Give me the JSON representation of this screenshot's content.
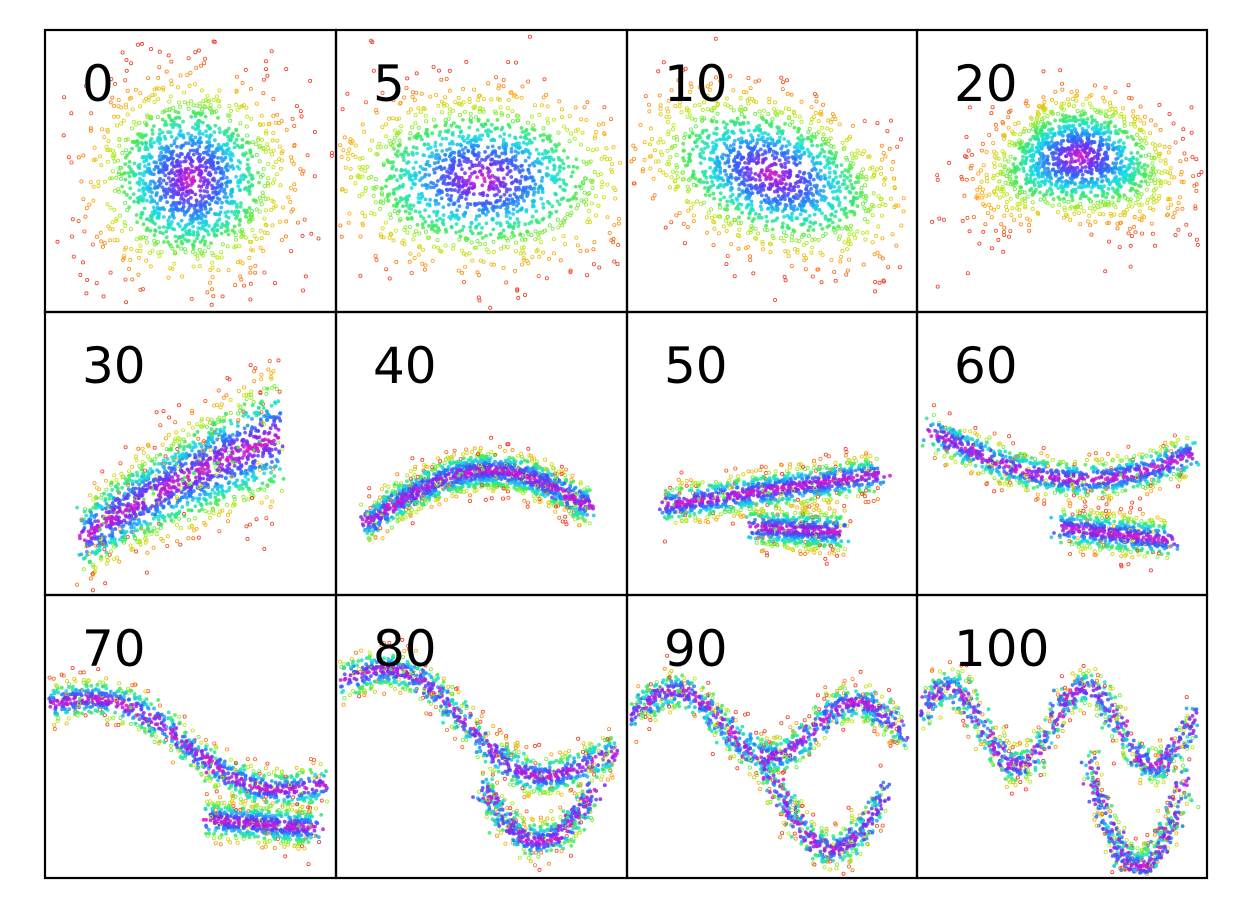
{
  "chart_data": {
    "type": "scatter",
    "layout": {
      "rows": 3,
      "cols": 4
    },
    "axes_visible": false,
    "legend": "none",
    "point_color_scale": "density, red at sparse edges through orange, yellow, green, cyan, blue to magenta at densest core",
    "panels": [
      {
        "label": "0",
        "shape": "isotropic gaussian blob",
        "center": [
          0.0,
          0.0
        ],
        "spread": [
          0.8,
          0.8
        ]
      },
      {
        "label": "5",
        "shape": "horizontally elongated ellipse",
        "center": [
          0.0,
          0.0
        ],
        "spread": [
          1.1,
          0.75
        ]
      },
      {
        "label": "10",
        "shape": "tilted ellipse, slope down-right",
        "center": [
          0.0,
          0.1
        ],
        "spread": [
          1.0,
          0.65
        ]
      },
      {
        "label": "20",
        "shape": "compact bent blob",
        "center": [
          0.2,
          0.3
        ],
        "spread": [
          0.8,
          0.5
        ]
      },
      {
        "label": "30",
        "shape": "comet-like curve rising to the right",
        "center": [
          0.3,
          -0.4
        ],
        "spread": [
          1.6,
          0.5
        ]
      },
      {
        "label": "40",
        "shape": "thin upward arc",
        "center": [
          0.3,
          -0.5
        ],
        "spread": [
          1.7,
          0.3
        ]
      },
      {
        "label": "50",
        "shape": "Z-shaped fold",
        "center": [
          0.2,
          -0.4
        ],
        "spread": [
          1.8,
          0.3
        ]
      },
      {
        "label": "60",
        "shape": "S-shaped fold with two tails",
        "center": [
          0.3,
          -0.3
        ],
        "spread": [
          2.6,
          0.3
        ]
      },
      {
        "label": "70",
        "shape": "long wave with split tail",
        "center": [
          0.0,
          -0.3
        ],
        "spread": [
          2.8,
          0.3
        ]
      },
      {
        "label": "80",
        "shape": "wave with two branches",
        "center": [
          0.0,
          -0.2
        ],
        "spread": [
          2.8,
          0.35
        ]
      },
      {
        "label": "90",
        "shape": "oscillating wave with branches",
        "center": [
          0.0,
          -0.2
        ],
        "spread": [
          2.8,
          0.35
        ]
      },
      {
        "label": "100",
        "shape": "double-wave oscillation with branches",
        "center": [
          0.0,
          -0.1
        ],
        "spread": [
          2.8,
          0.4
        ]
      }
    ]
  }
}
